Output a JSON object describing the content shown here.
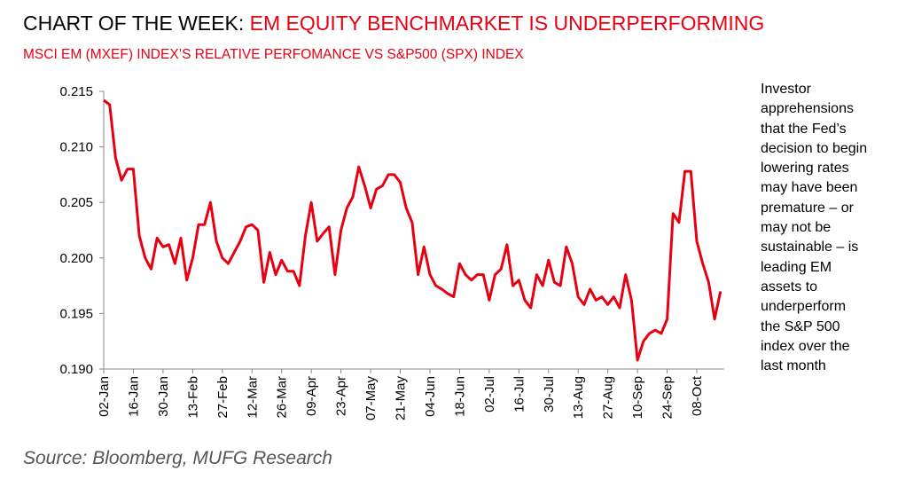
{
  "chart_data": {
    "type": "line",
    "title": "CHART OF THE WEEK:",
    "title_highlight": "EM EQUITY BENCHMARKET IS UNDERPERFORMING",
    "subtitle": "MSCI EM (MXEF) INDEX’S RELATIVE PERFOMANCE VS S&P500 (SPX) INDEX",
    "annotation": [
      "Investor",
      "apprehensions",
      "that the Fed’s",
      "decision to begin",
      "lowering rates",
      "may have been",
      "premature – or",
      "may not be",
      "sustainable – is",
      "leading EM",
      "assets to",
      "underperform",
      "the S&P 500",
      "index over the",
      "last month"
    ],
    "source": "Source: Bloomberg, MUFG Research",
    "color": "#e60012",
    "ylim": [
      0.19,
      0.215
    ],
    "yticks": [
      {
        "value": 0.19,
        "label": "0.190"
      },
      0.195,
      {
        "value": 0.2,
        "label": "0.200"
      },
      0.205,
      {
        "value": 0.21,
        "label": "0.210"
      },
      0.215
    ],
    "categories": [
      "02-Jan",
      null,
      null,
      null,
      null,
      "16-Jan",
      null,
      null,
      null,
      null,
      "30-Jan",
      null,
      null,
      null,
      null,
      "13-Feb",
      null,
      null,
      null,
      null,
      "27-Feb",
      null,
      null,
      null,
      null,
      "12-Mar",
      null,
      null,
      null,
      null,
      "26-Mar",
      null,
      null,
      null,
      null,
      "09-Apr",
      null,
      null,
      null,
      null,
      "23-Apr",
      null,
      null,
      null,
      null,
      "07-May",
      null,
      null,
      null,
      null,
      "21-May",
      null,
      null,
      null,
      null,
      "04-Jun",
      null,
      null,
      null,
      null,
      "18-Jun",
      null,
      null,
      null,
      null,
      "02-Jul",
      null,
      null,
      null,
      null,
      "16-Jul",
      null,
      null,
      null,
      null,
      "30-Jul",
      null,
      null,
      null,
      null,
      "13-Aug",
      null,
      null,
      null,
      null,
      "27-Aug",
      null,
      null,
      null,
      null,
      "10-Sep",
      null,
      null,
      null,
      null,
      "24-Sep",
      null,
      null,
      null,
      null,
      "08-Oct",
      null,
      null,
      null,
      null
    ],
    "values": [
      0.2142,
      0.2138,
      0.209,
      0.207,
      0.208,
      0.208,
      0.202,
      0.2,
      0.199,
      0.2018,
      0.201,
      0.2012,
      0.1995,
      0.2018,
      0.198,
      0.2,
      0.203,
      0.203,
      0.205,
      0.2015,
      0.2,
      0.1995,
      0.2005,
      0.2015,
      0.2028,
      0.203,
      0.2025,
      0.1978,
      0.2005,
      0.1985,
      0.1998,
      0.1988,
      0.1988,
      0.1975,
      0.202,
      0.205,
      0.2015,
      0.2022,
      0.2028,
      0.1985,
      0.2025,
      0.2045,
      0.2055,
      0.2082,
      0.2065,
      0.2045,
      0.2062,
      0.2065,
      0.2075,
      0.2075,
      0.2068,
      0.2045,
      0.2032,
      0.1985,
      0.201,
      0.1985,
      0.1975,
      0.1972,
      0.1968,
      0.1965,
      0.1995,
      0.1985,
      0.198,
      0.1985,
      0.1985,
      0.1962,
      0.1985,
      0.199,
      0.2012,
      0.1975,
      0.198,
      0.1962,
      0.1955,
      0.1985,
      0.1975,
      0.1998,
      0.1978,
      0.1975,
      0.201,
      0.1995,
      0.1965,
      0.1958,
      0.1972,
      0.1962,
      0.1965,
      0.1958,
      0.1965,
      0.1955,
      0.1985,
      0.1962,
      0.1908,
      0.1925,
      0.1932,
      0.1935,
      0.1932,
      0.1945,
      0.204,
      0.2032,
      0.2078,
      0.2078,
      0.2015,
      0.1995,
      0.1978,
      0.1945,
      0.197
    ]
  }
}
